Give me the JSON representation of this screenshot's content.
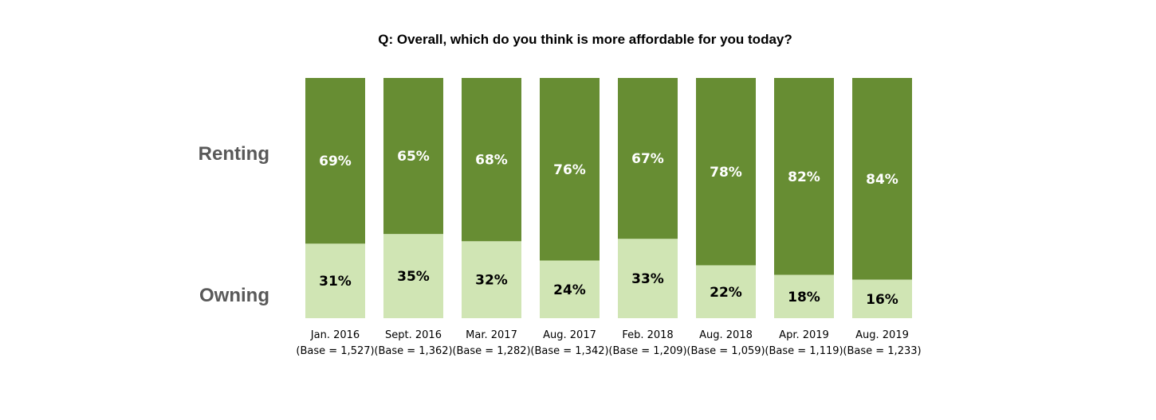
{
  "title": "Q: Overall, which do you think is more affordable for you today?",
  "colors": {
    "renting": "#678d33",
    "owning": "#d0e5b4",
    "renting_label": "#ffffff",
    "owning_label": "#000000",
    "series_label": "#595959",
    "tick_label": "#000000"
  },
  "chart_data": {
    "type": "bar",
    "stacked": true,
    "normalized": true,
    "title": "Q: Overall, which do you think is more affordable for you today?",
    "categories": [
      "Jan. 2016",
      "Sept. 2016",
      "Mar. 2017",
      "Aug. 2017",
      "Feb. 2018",
      "Aug. 2018",
      "Apr. 2019",
      "Aug. 2019"
    ],
    "bases": [
      "(Base = 1,527)",
      "(Base = 1,362)",
      "(Base = 1,282)",
      "(Base = 1,342)",
      "(Base = 1,209)",
      "(Base = 1,059)",
      "(Base = 1,119)",
      "(Base = 1,233)"
    ],
    "series": [
      {
        "name": "Owning",
        "values": [
          31,
          35,
          32,
          24,
          33,
          22,
          18,
          16
        ],
        "labels": [
          "31%",
          "35%",
          "32%",
          "24%",
          "33%",
          "22%",
          "18%",
          "16%"
        ]
      },
      {
        "name": "Renting",
        "values": [
          69,
          65,
          68,
          76,
          67,
          78,
          82,
          84
        ],
        "labels": [
          "69%",
          "65%",
          "68%",
          "76%",
          "67%",
          "78%",
          "82%",
          "84%"
        ]
      }
    ],
    "ylim": [
      0,
      100
    ],
    "grid": false,
    "legend": "left"
  }
}
